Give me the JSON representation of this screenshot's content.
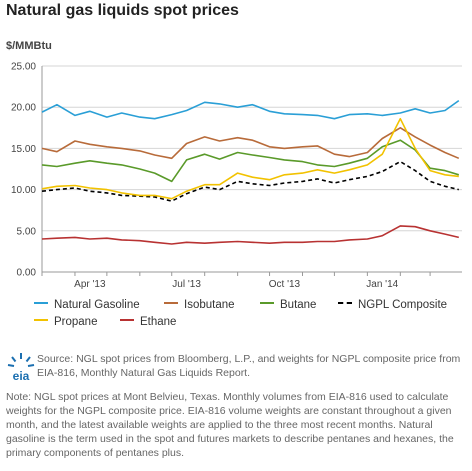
{
  "page": {
    "title": "Natural gas liquids spot prices",
    "unit": "$/MMBtu",
    "source": "Source: NGL spot prices from Bloomberg, L.P., and weights for NGPL composite price from EIA-816, Monthly Natural Gas Liquids Report.",
    "note": "Note: NGL spot prices at Mont Belvieu, Texas. Monthly volumes from EIA-816 used to calculate weights for the NGPL composite price. EIA-816 volume weights are constant throughout a given month, and the latest available weights are applied to the three most recent months. Natural gasoline is the term used in the spot and futures markets to describe pentanes and hexanes, the primary components of pentanes plus.",
    "logo_text": "eia",
    "logo_icon": "eia-sun-logo"
  },
  "chart_data": {
    "type": "line",
    "ylabel": "$/MMBtu",
    "ylim": [
      0,
      25
    ],
    "yticks": [
      "0.00",
      "5.00",
      "10.00",
      "15.00",
      "20.00",
      "25.00"
    ],
    "xticks": [
      "Apr '13",
      "Jul '13",
      "Oct '13",
      "Jan '14"
    ],
    "x_range": [
      "2013-03-01",
      "2014-03-31"
    ],
    "grid": true,
    "legend_position": "bottom",
    "x": [
      "2013-03-01",
      "2013-03-15",
      "2013-04-01",
      "2013-04-15",
      "2013-05-01",
      "2013-05-15",
      "2013-06-01",
      "2013-06-15",
      "2013-07-01",
      "2013-07-15",
      "2013-08-01",
      "2013-08-15",
      "2013-09-01",
      "2013-09-15",
      "2013-10-01",
      "2013-10-15",
      "2013-11-01",
      "2013-11-15",
      "2013-12-01",
      "2013-12-15",
      "2014-01-01",
      "2014-01-15",
      "2014-02-01",
      "2014-02-15",
      "2014-03-01",
      "2014-03-15",
      "2014-03-28"
    ],
    "series": [
      {
        "name": "Natural Gasoline",
        "color": "#2a9fd6",
        "dash": "none",
        "values": [
          19.4,
          20.3,
          19.0,
          19.5,
          18.8,
          19.3,
          18.8,
          18.6,
          19.1,
          19.6,
          20.6,
          20.4,
          20.0,
          20.3,
          19.5,
          19.2,
          19.1,
          19.0,
          18.6,
          19.1,
          19.2,
          19.0,
          19.3,
          19.8,
          19.3,
          19.6,
          20.8
        ]
      },
      {
        "name": "Isobutane",
        "color": "#b86b3a",
        "dash": "none",
        "values": [
          15.0,
          14.6,
          15.9,
          15.5,
          15.2,
          15.0,
          14.7,
          14.2,
          13.8,
          15.6,
          16.4,
          15.9,
          16.3,
          16.0,
          15.2,
          15.0,
          15.2,
          15.3,
          14.3,
          14.0,
          14.5,
          16.2,
          17.5,
          16.4,
          15.4,
          14.5,
          13.8
        ]
      },
      {
        "name": "Butane",
        "color": "#5a9a2a",
        "dash": "none",
        "values": [
          13.0,
          12.8,
          13.2,
          13.5,
          13.2,
          13.0,
          12.5,
          12.0,
          11.0,
          13.6,
          14.3,
          13.7,
          14.5,
          14.2,
          13.9,
          13.6,
          13.4,
          13.0,
          12.8,
          13.2,
          13.8,
          15.2,
          16.0,
          14.8,
          12.6,
          12.3,
          11.8
        ]
      },
      {
        "name": "NGPL Composite",
        "color": "#000000",
        "dash": "4,3",
        "values": [
          9.8,
          10.0,
          10.2,
          9.8,
          9.6,
          9.3,
          9.2,
          9.1,
          8.6,
          9.5,
          10.3,
          10.0,
          11.0,
          10.7,
          10.5,
          10.8,
          11.0,
          11.3,
          10.8,
          11.2,
          11.6,
          12.2,
          13.4,
          12.3,
          11.0,
          10.4,
          10.0
        ]
      },
      {
        "name": "Propane",
        "color": "#f2c200",
        "dash": "none",
        "values": [
          10.1,
          10.4,
          10.5,
          10.2,
          10.0,
          9.6,
          9.3,
          9.3,
          8.9,
          9.8,
          10.6,
          10.6,
          12.0,
          11.5,
          11.2,
          11.8,
          12.0,
          12.4,
          12.0,
          12.4,
          13.0,
          14.3,
          18.6,
          15.0,
          12.3,
          11.8,
          11.6
        ]
      },
      {
        "name": "Ethane",
        "color": "#b83232",
        "dash": "none",
        "values": [
          4.0,
          4.1,
          4.2,
          4.0,
          4.1,
          3.9,
          3.8,
          3.6,
          3.4,
          3.6,
          3.5,
          3.6,
          3.7,
          3.6,
          3.5,
          3.6,
          3.6,
          3.7,
          3.7,
          3.9,
          4.0,
          4.4,
          5.6,
          5.5,
          5.0,
          4.6,
          4.2
        ]
      }
    ]
  }
}
